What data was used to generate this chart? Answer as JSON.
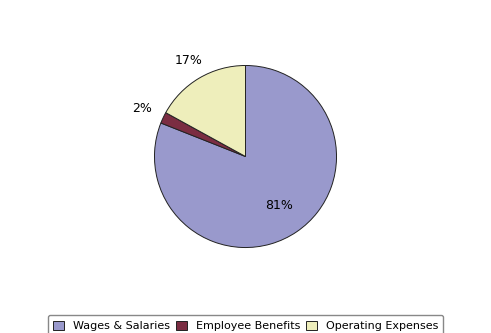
{
  "labels": [
    "Wages & Salaries",
    "Employee Benefits",
    "Operating Expenses"
  ],
  "values": [
    81,
    2,
    17
  ],
  "colors": [
    "#9999cc",
    "#7b2d42",
    "#eeeebb"
  ],
  "legend_labels": [
    "Wages & Salaries",
    "Employee Benefits",
    "Operating Expenses"
  ],
  "startangle": 90,
  "background_color": "#ffffff",
  "edge_color": "#222222",
  "font_size": 9,
  "legend_font_size": 8
}
